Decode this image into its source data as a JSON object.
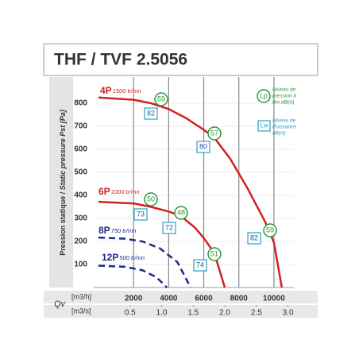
{
  "chart_data": {
    "type": "line",
    "title": "THF / TVF 2.5056",
    "ylabel": [
      "Pression statique / ",
      "Static pressure Pst [Pa]"
    ],
    "xlabel": "Qv",
    "xunit": "[m3/h]",
    "x2unit": "[m3/s]",
    "xlim": [
      0,
      11000
    ],
    "xticks": [
      2000,
      4000,
      6000,
      8000,
      10000
    ],
    "x2lim": [
      0,
      3.0556
    ],
    "x2ticks": [
      0.5,
      {
        "value": 1,
        "label": "1.0"
      },
      1.5,
      {
        "value": 2,
        "label": "2.0"
      },
      2.5,
      {
        "value": 3,
        "label": "3.0"
      }
    ],
    "ylim": [
      0,
      900
    ],
    "yticks": [
      100,
      200,
      300,
      400,
      500,
      600,
      700,
      800
    ],
    "grid": true,
    "legend": {
      "lp": "Lp",
      "lp_text": [
        "Niveau de",
        "pression à",
        "8m dB(A)"
      ],
      "lw": "Lw",
      "lw_text": [
        "Niveau de",
        "Puissance",
        "dB(A)"
      ],
      "lp_color": "#2a9a3a",
      "lw_color": "#2aa0c0"
    },
    "series": [
      {
        "name": "4P",
        "speed": "1500 tr/mn",
        "color": "#d42020",
        "dashed": false,
        "x": [
          0,
          2000,
          3000,
          4000,
          5000,
          6000,
          6600,
          7500,
          8500,
          9500,
          10000,
          10450
        ],
        "values": [
          825,
          815,
          800,
          775,
          735,
          685,
          650,
          560,
          430,
          285,
          195,
          0
        ],
        "lp": [
          59,
          57,
          59
        ],
        "lw": [
          82,
          80,
          82
        ]
      },
      {
        "name": "6P",
        "speed": "1000 tr/mn",
        "color": "#d42020",
        "dashed": false,
        "x": [
          0,
          2000,
          3000,
          4000,
          4700,
          5500,
          6000,
          6600,
          7200
        ],
        "values": [
          372,
          365,
          350,
          330,
          310,
          260,
          215,
          150,
          0
        ],
        "lp": [
          50,
          48,
          51
        ],
        "lw": [
          73,
          72,
          74
        ]
      },
      {
        "name": "8P",
        "speed": "750 tr/mn",
        "color": "#1a2a8c",
        "dashed": true,
        "x": [
          0,
          1500,
          2500,
          3500,
          4500,
          5250
        ],
        "values": [
          217,
          212,
          200,
          170,
          110,
          0
        ]
      },
      {
        "name": "12P",
        "speed": "500 tr/mn",
        "color": "#1a2a8c",
        "dashed": true,
        "x": [
          0,
          1500,
          2500,
          3300,
          3900
        ],
        "values": [
          95,
          90,
          75,
          45,
          0
        ]
      }
    ]
  }
}
